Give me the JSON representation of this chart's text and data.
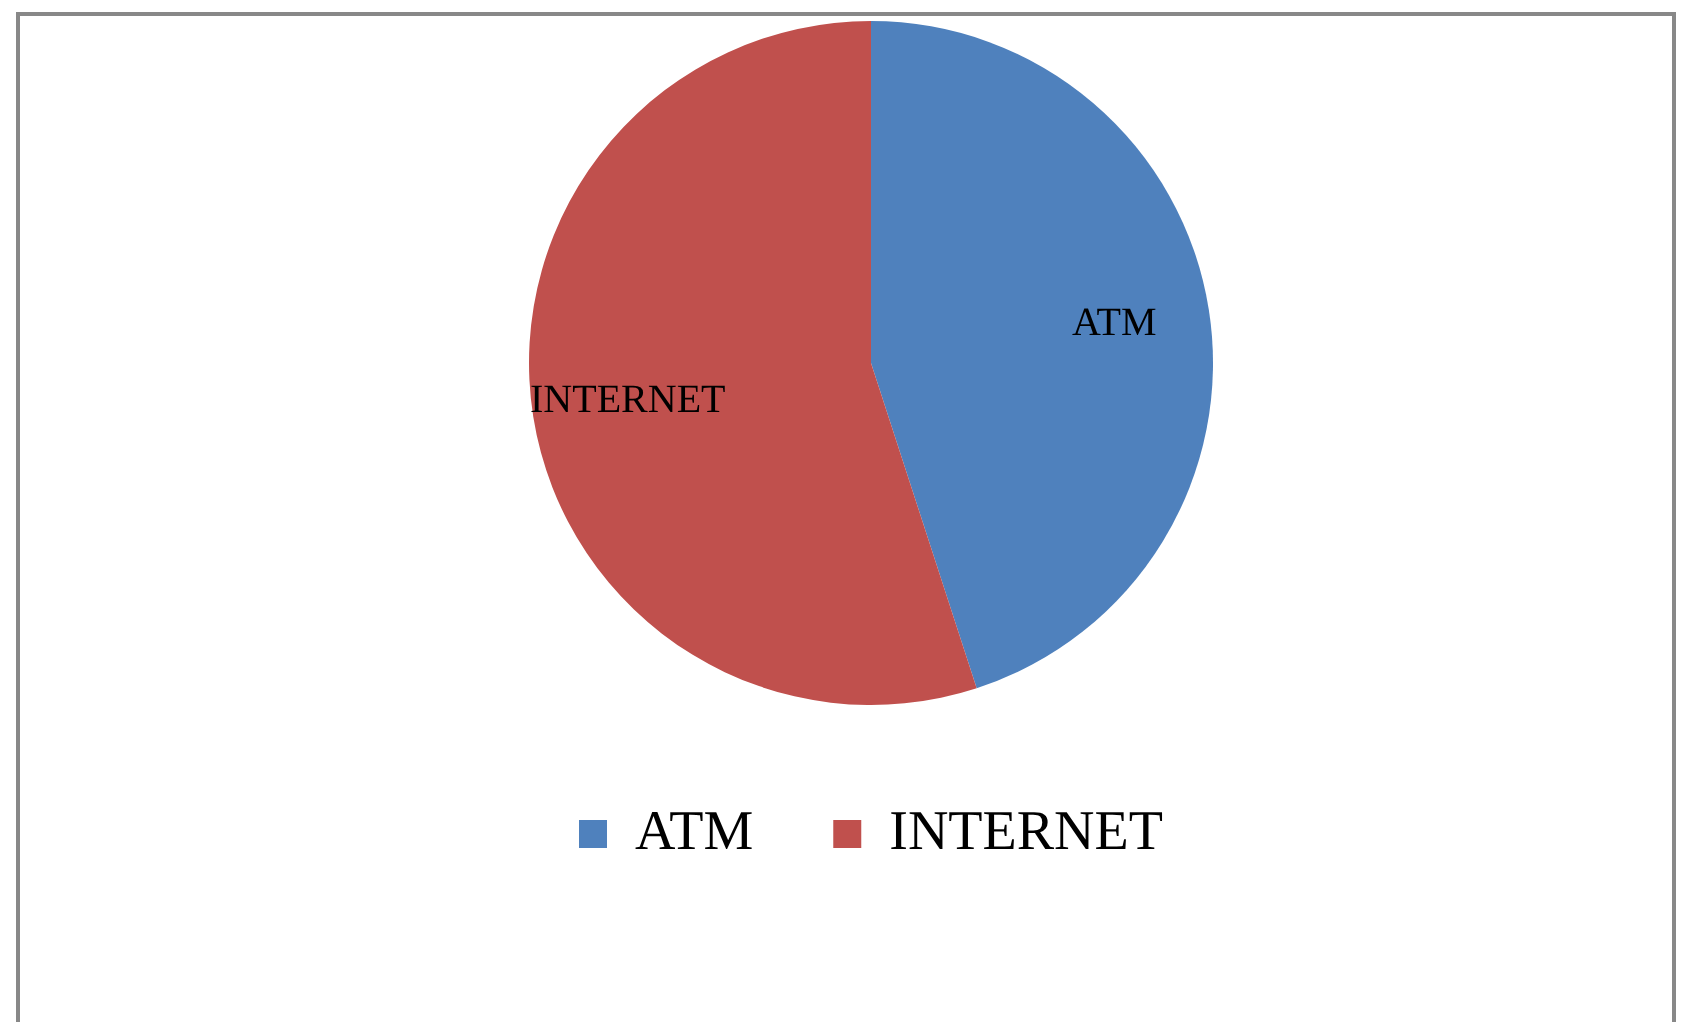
{
  "chart_data": {
    "type": "pie",
    "categories": [
      "ATM",
      "INTERNET"
    ],
    "values": [
      45,
      55
    ],
    "colors": [
      "#4f81bd",
      "#c0504d"
    ],
    "legend": "bottom",
    "data_labels": "category"
  }
}
